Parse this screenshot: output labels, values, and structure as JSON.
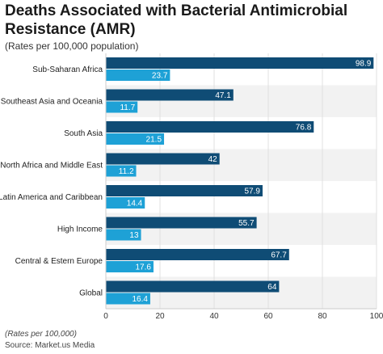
{
  "chart_data": {
    "type": "bar",
    "title": "Deaths Associated with Bacterial Antimicrobial Resistance (AMR)",
    "subtitle": "(Rates per 100,000 population)",
    "xlabel": "",
    "ylabel": "",
    "categories": [
      "Sub-Saharan Africa",
      "Southeast Asia and Oceania",
      "South Asia",
      "North Africa and Middle East",
      "Latin America and Caribbean",
      "High Income",
      "Central & Estern Europe",
      "Global"
    ],
    "series": [
      {
        "values": [
          98.9,
          47.1,
          76.8,
          42,
          57.9,
          55.7,
          67.7,
          64
        ],
        "color": "#0f4c75"
      },
      {
        "values": [
          23.7,
          11.7,
          21.5,
          11.2,
          14.4,
          13,
          17.6,
          16.4
        ],
        "color": "#1ea1d6"
      }
    ],
    "xlim": [
      0,
      100
    ],
    "xticks": [
      0,
      20,
      40,
      60,
      80,
      100
    ],
    "grid": true,
    "orientation": "horizontal",
    "band_colors": [
      "#ffffff",
      "#f2f2f2"
    ]
  },
  "footer": {
    "note": "(Rates per 100,000)",
    "source": "Source: Market.us Media"
  }
}
